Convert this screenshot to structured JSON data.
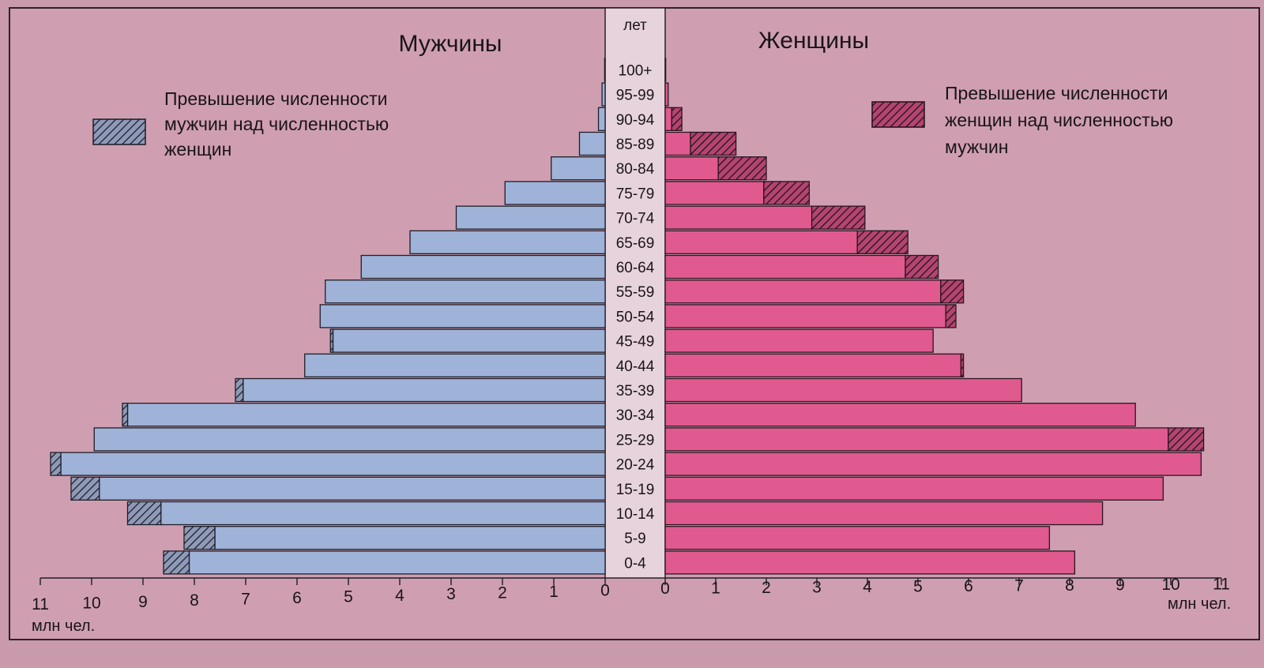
{
  "chart_data": {
    "type": "population-pyramid",
    "age_axis_label": "лет",
    "male_title": "Мужчины",
    "female_title": "Женщины",
    "unit_left": "млн чел.",
    "unit_right": "млн чел.",
    "legend_male_lines": [
      "Превышение численности",
      "мужчин над численностью",
      "женщин"
    ],
    "legend_female_lines": [
      "Превышение численности",
      "женщин над  численностью",
      "мужчин"
    ],
    "x_ticks_left": [
      "11",
      "10",
      "9",
      "8",
      "7",
      "6",
      "5",
      "4",
      "3",
      "2",
      "1",
      "0"
    ],
    "x_ticks_right": [
      "0",
      "1",
      "2",
      "3",
      "4",
      "5",
      "6",
      "7",
      "8",
      "9",
      "10",
      "11"
    ],
    "xlim": [
      0,
      11
    ],
    "age_groups": [
      "0-4",
      "5-9",
      "10-14",
      "15-19",
      "20-24",
      "25-29",
      "30-34",
      "35-39",
      "40-44",
      "45-49",
      "50-54",
      "55-59",
      "60-64",
      "65-69",
      "70-74",
      "75-79",
      "80-84",
      "85-89",
      "90-94",
      "95-99",
      "100+"
    ],
    "male": [
      8.6,
      8.2,
      9.3,
      10.4,
      10.8,
      9.95,
      9.4,
      7.2,
      5.85,
      5.35,
      5.55,
      5.45,
      4.75,
      3.8,
      2.9,
      1.95,
      1.05,
      0.5,
      0.13,
      0.06,
      0.01
    ],
    "female": [
      8.1,
      7.6,
      8.65,
      9.85,
      10.6,
      10.65,
      9.3,
      7.05,
      5.9,
      5.3,
      5.75,
      5.9,
      5.4,
      4.8,
      3.95,
      2.85,
      2.0,
      1.4,
      0.33,
      0.06,
      0.01
    ],
    "male_bar_color": "#9fb3d8",
    "female_bar_color": "#e05a90",
    "male_excess_color": "#8e9ab8",
    "female_excess_color": "#b44470",
    "background_color": "#c99aab"
  }
}
